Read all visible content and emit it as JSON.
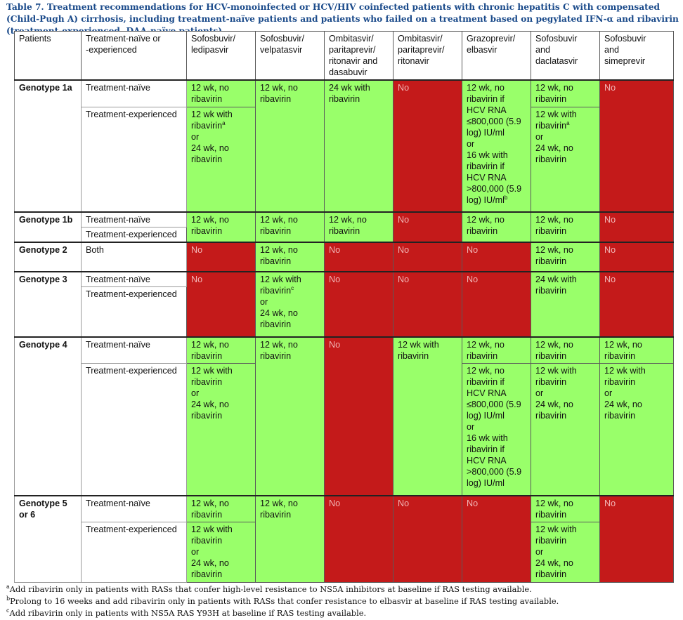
{
  "caption": "Table 7. Treatment recommendations for HCV-monoinfected or HCV/HIV coinfected patients with chronic hepatitis C with compensated (Child-Pugh A) cirrhosis, including treatment-naïve patients and patients who failed on a treatment based on pegylated IFN-α and ribavirin (treatment-experienced, DAA-naïve patients).",
  "headers": {
    "patients": "Patients",
    "status": "Treatment-naïve or\n-experienced",
    "c1": "Sofosbuvir/\nledipasvir",
    "c2": "Sofosbuvir/\nvelpatasvir",
    "c3": "Ombitasvir/\nparitaprevir/\nritonavir and\ndasabuvir",
    "c4": "Ombitasvir/\nparitaprevir/\nritonavir",
    "c5": "Grazoprevir/\nelbasvir",
    "c6": "Sofosbuvir\nand\ndaclatasvir",
    "c7": "Sofosbuvir\nand\nsimeprevir"
  },
  "labels": {
    "naive": "Treatment-naïve",
    "experienced": "Treatment-experienced",
    "both": "Both"
  },
  "genotypes": {
    "g1a": "Genotype 1a",
    "g1b": "Genotype 1b",
    "g2": "Genotype 2",
    "g3": "Genotype 3",
    "g4": "Genotype 4",
    "g56": "Genotype 5\nor 6"
  },
  "cells": {
    "no": "No",
    "wk12_no_rbv": "12 wk, no\nribavirin",
    "wk24_with_rbv": "24 wk with\nribavirin",
    "wk12_with_rbv_a_pre": "12 wk with\nribavirin",
    "sup_a": "a",
    "sup_b": "b",
    "sup_c": "c",
    "or_24_no_rbv": "or\n24 wk, no\nribavirin",
    "wk12_with_rbv_or_24": "12 wk with\nribavirin\nor\n24 wk, no\nribavirin",
    "g1a_grazo_pre": "12 wk, no\nribavirin if\nHCV RNA\n≤800,000 (5.9\nlog) IU/ml\nor\n16 wk with\nribavirin if\nHCV RNA\n>800,000 (5.9\nlog) IU/ml",
    "g4_grazo": "12 wk, no\nribavirin if\nHCV RNA\n≤800,000 (5.9\nlog) IU/ml\nor\n16 wk with\nribavirin if\nHCV RNA\n>800,000 (5.9\nlog) IU/ml",
    "wk24_with_rbv_dac": "24 wk with\nribavirin",
    "g4_ombi": "12 wk with\nribavirin"
  },
  "footnotes": {
    "a_mark": "a",
    "a_text": "Add ribavirin only in patients with RASs that confer high-level resistance to NS5A inhibitors at baseline if RAS testing available.",
    "b_mark": "b",
    "b_text": "Prolong to 16 weeks and add ribavirin only in patients with RASs that confer resistance to elbasvir at baseline if RAS testing available.",
    "c_mark": "c",
    "c_text": "Add ribavirin only in patients with NS5A RAS Y93H at baseline if RAS testing available."
  },
  "colors": {
    "recommended": "#99ff6a",
    "not_recommended": "#c41a1a",
    "caption": "#1a4a8a"
  }
}
